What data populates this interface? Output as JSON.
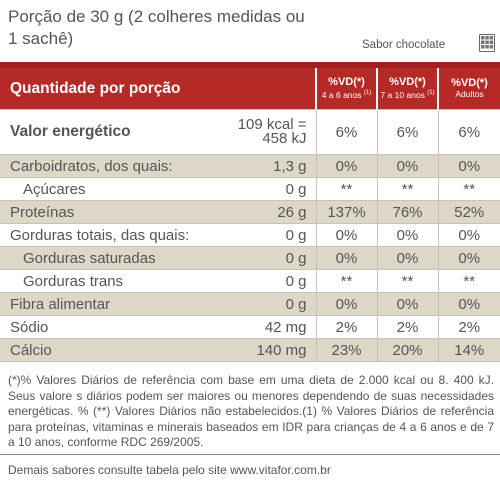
{
  "portion": "Porção de 30 g (2 colheres medidas ou 1 sachê)",
  "flavor": "Sabor chocolate",
  "flavor_icon": "chocolate-bar-icon",
  "header": {
    "title": "Quantidade por porção",
    "columns": [
      {
        "main": "%VD(*)",
        "sub": "4 a 6 anos",
        "note": "(1)"
      },
      {
        "main": "%VD(*)",
        "sub": "7 a 10 anos",
        "note": "(1)"
      },
      {
        "main": "%VD(*)",
        "sub": "Adultos",
        "note": ""
      }
    ]
  },
  "rows": [
    {
      "name": "Valor energético",
      "qty": "109 kcal =",
      "qty2": "458 kJ",
      "vd": [
        "6%",
        "6%",
        "6%"
      ]
    },
    {
      "name": "Carboidratos, dos quais:",
      "qty": "1,3 g",
      "vd": [
        "0%",
        "0%",
        "0%"
      ]
    },
    {
      "name": "Açúcares",
      "qty": "0 g",
      "vd": [
        "**",
        "**",
        "**"
      ]
    },
    {
      "name": "Proteínas",
      "qty": "26 g",
      "vd": [
        "137%",
        "76%",
        "52%"
      ]
    },
    {
      "name": "Gorduras totais, das quais:",
      "qty": "0 g",
      "vd": [
        "0%",
        "0%",
        "0%"
      ]
    },
    {
      "name": "Gorduras saturadas",
      "qty": "0 g",
      "vd": [
        "0%",
        "0%",
        "0%"
      ]
    },
    {
      "name": "Gorduras trans",
      "qty": "0 g",
      "vd": [
        "**",
        "**",
        "**"
      ]
    },
    {
      "name": "Fibra alimentar",
      "qty": "0 g",
      "vd": [
        "0%",
        "0%",
        "0%"
      ]
    },
    {
      "name": "Sódio",
      "qty": "42 mg",
      "vd": [
        "2%",
        "2%",
        "2%"
      ]
    },
    {
      "name": "Cálcio",
      "qty": "140 mg",
      "vd": [
        "23%",
        "20%",
        "14%"
      ]
    }
  ],
  "notes": "(*)% Valores Diários de referência com base em uma dieta de 2.000 kcal ou 8. 400 kJ. Seus valore s diários podem ser maiores ou menores dependendo de suas necessidades energéticas. % (**) Valores Diários não estabelecidos.(1) % Valores Diários de referência para proteínas, vitaminas e minerais baseados em IDR para crianças de 4 a 6 anos e de 7 a 10 anos, conforme RDC 269/2005.",
  "footer": "Demais sabores consulte tabela pelo site www.vitafor.com.br",
  "colors": {
    "accent": "#b52a26",
    "shade": "#ddd7c8"
  }
}
